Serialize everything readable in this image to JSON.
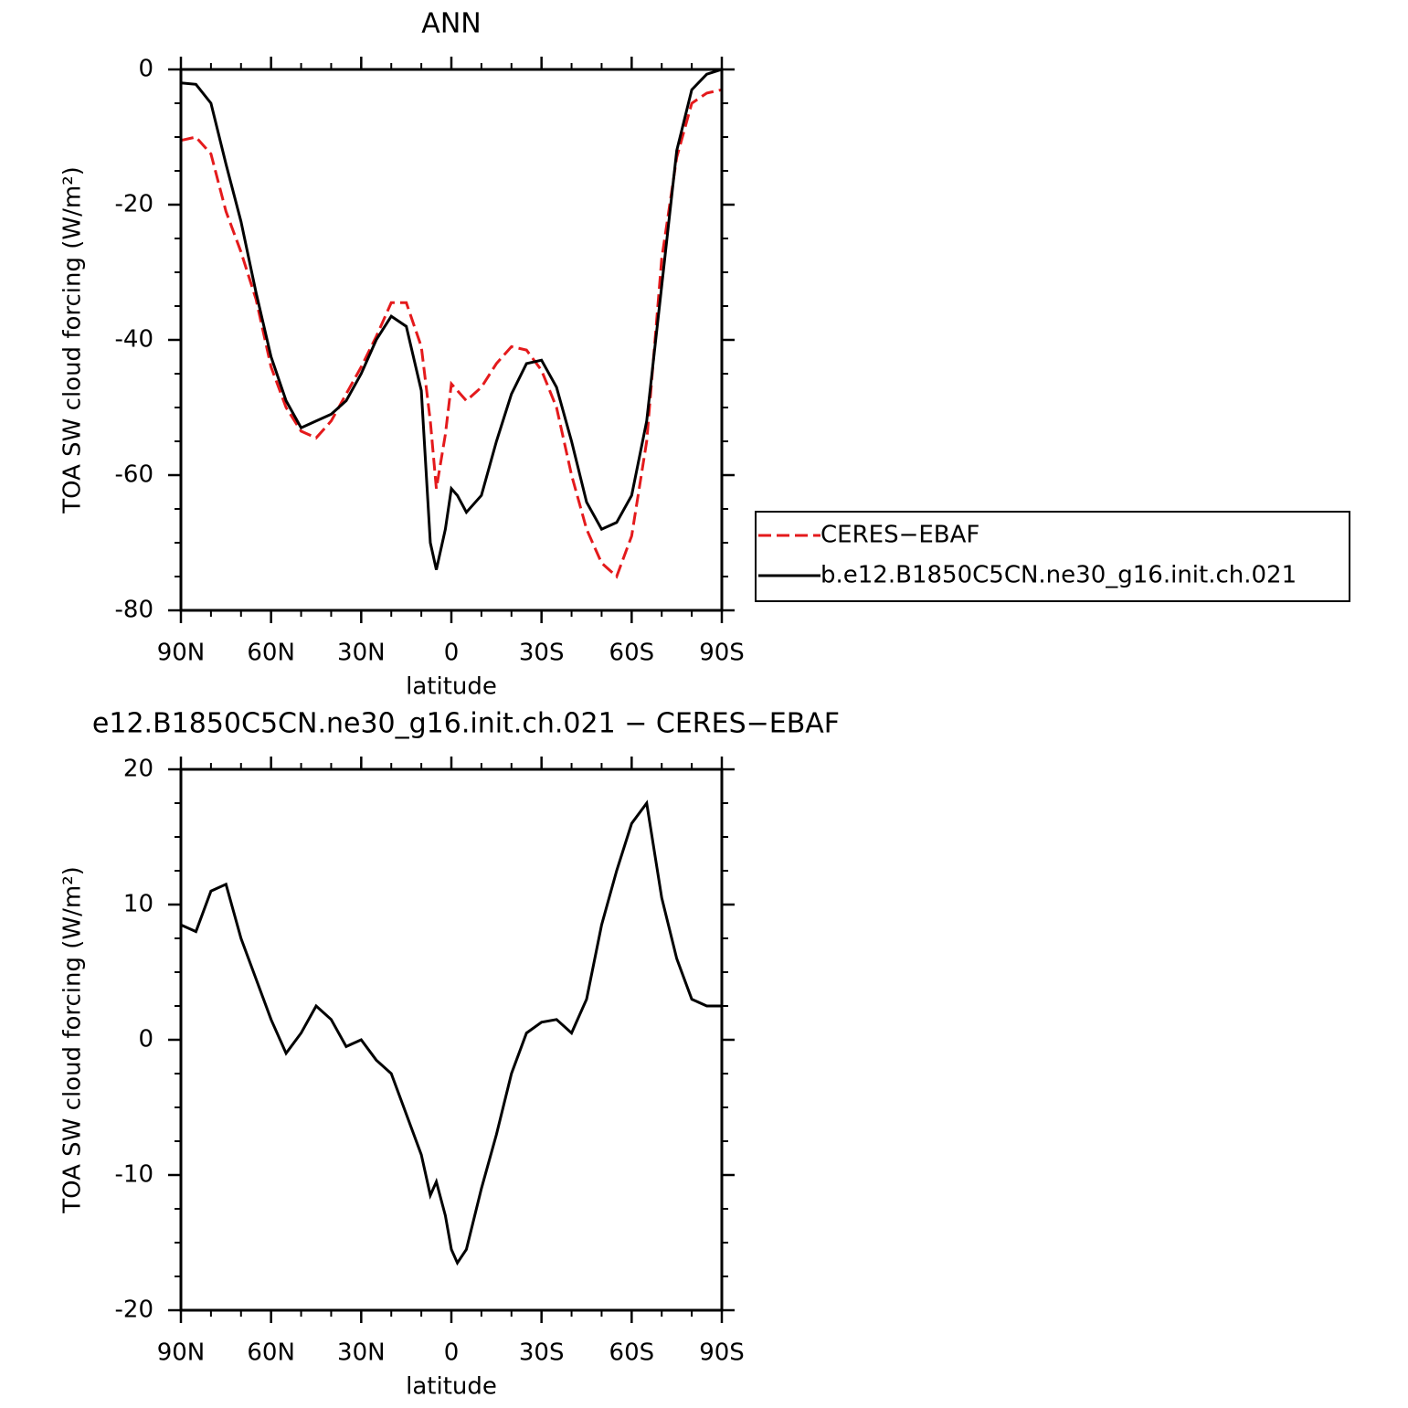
{
  "chart_data": [
    {
      "type": "line",
      "title": "ANN",
      "xlabel": "latitude",
      "ylabel": "TOA SW cloud forcing (W/m²)",
      "x": [
        90,
        85,
        80,
        75,
        70,
        65,
        60,
        55,
        50,
        45,
        40,
        35,
        30,
        25,
        20,
        15,
        10,
        7,
        5,
        2,
        0,
        -2,
        -5,
        -10,
        -15,
        -20,
        -25,
        -30,
        -35,
        -40,
        -45,
        -50,
        -55,
        -60,
        -65,
        -70,
        -75,
        -80,
        -85,
        -90
      ],
      "series": [
        {
          "name": "CERES−EBAF",
          "color": "#e41a1c",
          "dash": true,
          "values": [
            -10.5,
            -10,
            -12.5,
            -21,
            -27,
            -34,
            -44,
            -50,
            -53.5,
            -54.5,
            -52,
            -48,
            -44,
            -39.5,
            -34.5,
            -34.5,
            -41,
            -52,
            -62,
            -54,
            -46.5,
            -47.5,
            -49,
            -47,
            -43.5,
            -41,
            -41.5,
            -44.5,
            -50,
            -60,
            -68,
            -73,
            -75,
            -69,
            -55,
            -28,
            -13,
            -5,
            -3.5,
            -3
          ]
        },
        {
          "name": "b.e12.B1850C5CN.ne30_g16.init.ch.021",
          "color": "#000000",
          "dash": false,
          "values": [
            -2,
            -2.2,
            -5,
            -14,
            -22.5,
            -33,
            -42.5,
            -49,
            -53,
            -52,
            -51,
            -49,
            -45,
            -40,
            -36.5,
            -38,
            -47.5,
            -70,
            -74,
            -68,
            -62,
            -63,
            -65.5,
            -63,
            -55,
            -48,
            -43.5,
            -43,
            -47,
            -55,
            -64,
            -68,
            -67,
            -63,
            -52,
            -32,
            -12,
            -3,
            -0.7,
            0
          ]
        }
      ],
      "xlim": [
        90,
        -90
      ],
      "xticks": [
        {
          "value": 90,
          "label": "90N"
        },
        {
          "value": 60,
          "label": "60N"
        },
        {
          "value": 30,
          "label": "30N"
        },
        0,
        {
          "value": -30,
          "label": "30S"
        },
        {
          "value": -60,
          "label": "60S"
        },
        {
          "value": -90,
          "label": "90S"
        }
      ],
      "ylim": [
        -80,
        0
      ],
      "yticks": [
        0,
        -20,
        -40,
        -60,
        -80
      ],
      "legend": "outside right"
    },
    {
      "type": "line",
      "title": "e12.B1850C5CN.ne30_g16.init.ch.021 − CERES−EBAF",
      "xlabel": "latitude",
      "ylabel": "TOA SW cloud forcing (W/m²)",
      "x": [
        90,
        85,
        80,
        75,
        70,
        65,
        60,
        55,
        50,
        45,
        40,
        35,
        30,
        25,
        20,
        15,
        10,
        7,
        5,
        2,
        0,
        -2,
        -5,
        -10,
        -15,
        -20,
        -25,
        -30,
        -35,
        -40,
        -45,
        -50,
        -55,
        -60,
        -65,
        -70,
        -75,
        -80,
        -85,
        -90
      ],
      "values": [
        8.5,
        8,
        11,
        11.5,
        7.5,
        4.5,
        1.5,
        -1,
        0.5,
        2.5,
        1.5,
        -0.5,
        0,
        -1.5,
        -2.5,
        -5.5,
        -8.5,
        -11.5,
        -10.5,
        -13,
        -15.5,
        -16.5,
        -15.5,
        -11,
        -7,
        -2.5,
        0.5,
        1.3,
        1.5,
        0.5,
        3,
        8.5,
        12.5,
        16,
        17.5,
        10.5,
        6,
        3,
        2.5,
        2.5
      ],
      "color": "#000000",
      "xlim": [
        90,
        -90
      ],
      "xticks": [
        {
          "value": 90,
          "label": "90N"
        },
        {
          "value": 60,
          "label": "60N"
        },
        {
          "value": 30,
          "label": "30N"
        },
        0,
        {
          "value": -30,
          "label": "30S"
        },
        {
          "value": -60,
          "label": "60S"
        },
        {
          "value": -90,
          "label": "90S"
        }
      ],
      "ylim": [
        -20,
        20
      ],
      "yticks": [
        20,
        10,
        0,
        -10,
        -20
      ]
    }
  ]
}
